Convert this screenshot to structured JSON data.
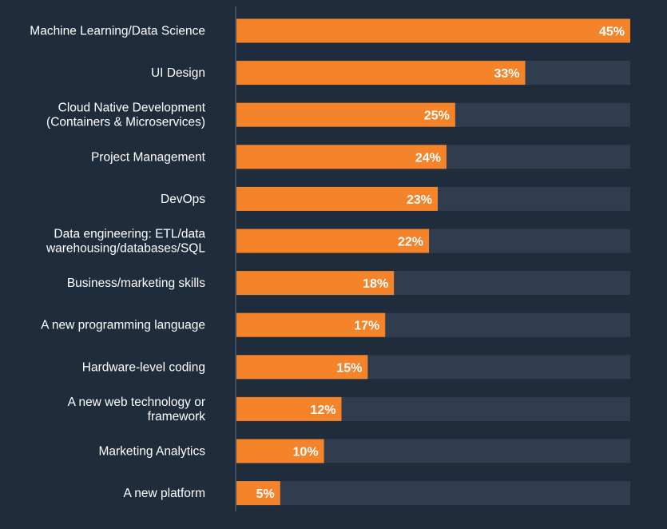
{
  "chart_data": {
    "type": "bar",
    "orientation": "horizontal",
    "categories": [
      [
        "Machine Learning/Data Science"
      ],
      [
        "UI Design"
      ],
      [
        "Cloud Native Development",
        "(Containers & Microservices)"
      ],
      [
        "Project Management"
      ],
      [
        "DevOps"
      ],
      [
        "Data engineering: ETL/data",
        "warehousing/databases/SQL"
      ],
      [
        "Business/marketing skills"
      ],
      [
        "A new programming language"
      ],
      [
        "Hardware-level coding"
      ],
      [
        "A new web technology or",
        "framework"
      ],
      [
        "Marketing Analytics"
      ],
      [
        "A new platform"
      ]
    ],
    "values": [
      45,
      33,
      25,
      24,
      23,
      22,
      18,
      17,
      15,
      12,
      10,
      5
    ],
    "value_labels": [
      "45%",
      "33%",
      "25%",
      "24%",
      "23%",
      "22%",
      "18%",
      "17%",
      "15%",
      "12%",
      "10%",
      "5%"
    ],
    "xlim": [
      0,
      45
    ],
    "grid": false,
    "legend": "none",
    "colors": {
      "background": "#1f2c3c",
      "bar": "#f5832a",
      "track": "#2f3d4f",
      "axis": "#4a5868",
      "text": "#ffffff"
    }
  }
}
